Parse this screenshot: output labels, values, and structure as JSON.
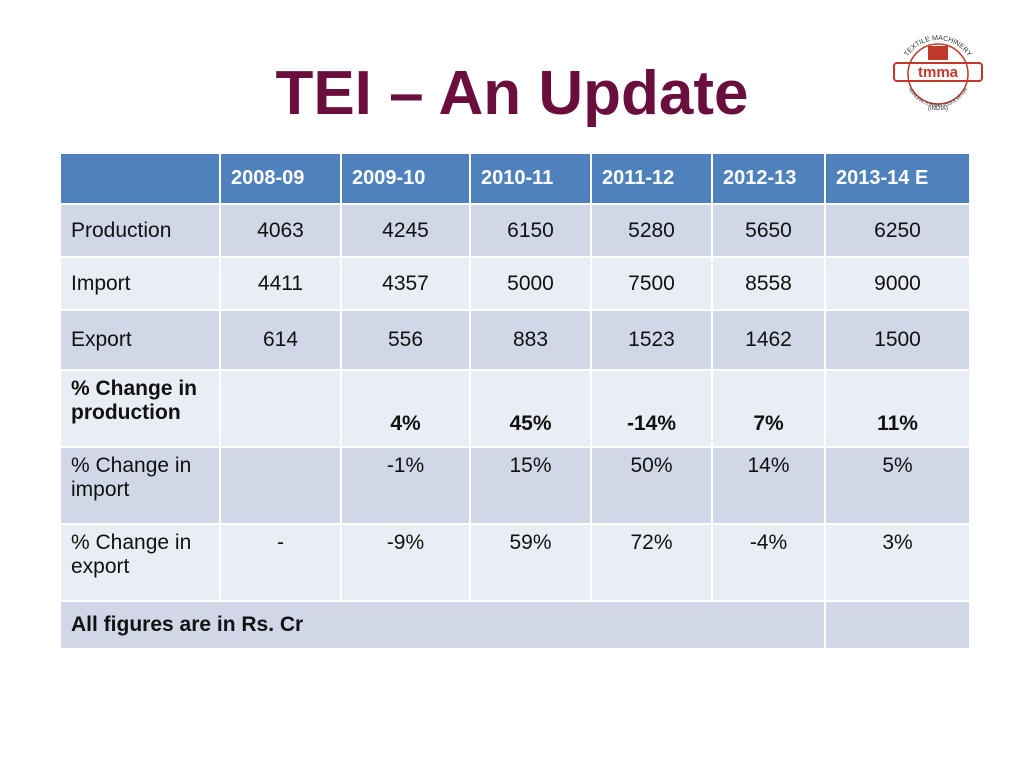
{
  "header": {
    "title": "TEI – An Update"
  },
  "logo": {
    "top": "TEXTILE MACHINERY",
    "mark": "tmma",
    "bottom": "MANUFACTURERS ASSOCIATION",
    "country": "(INDIA)"
  },
  "table": {
    "columns": [
      "2008-09",
      "2009-10",
      "2010-11",
      "2011-12",
      "2012-13",
      "2013-14 E"
    ],
    "rows": [
      {
        "label": "Production",
        "values": [
          "4063",
          "4245",
          "6150",
          "5280",
          "5650",
          "6250"
        ]
      },
      {
        "label": "Import",
        "values": [
          "4411",
          "4357",
          "5000",
          "7500",
          "8558",
          "9000"
        ]
      },
      {
        "label": "Export",
        "values": [
          "614",
          "556",
          "883",
          "1523",
          "1462",
          "1500"
        ]
      },
      {
        "label": "% Change in production",
        "values": [
          null,
          "4%",
          "45%",
          "-14%",
          "7%",
          "11%"
        ]
      },
      {
        "label": "% Change in import",
        "values": [
          null,
          "-1%",
          "15%",
          "50%",
          "14%",
          "5%"
        ]
      },
      {
        "label": "% Change in export",
        "values": [
          "-",
          "-9%",
          "59%",
          "72%",
          "-4%",
          "3%"
        ]
      }
    ],
    "footer": "All figures are in Rs. Cr"
  }
}
